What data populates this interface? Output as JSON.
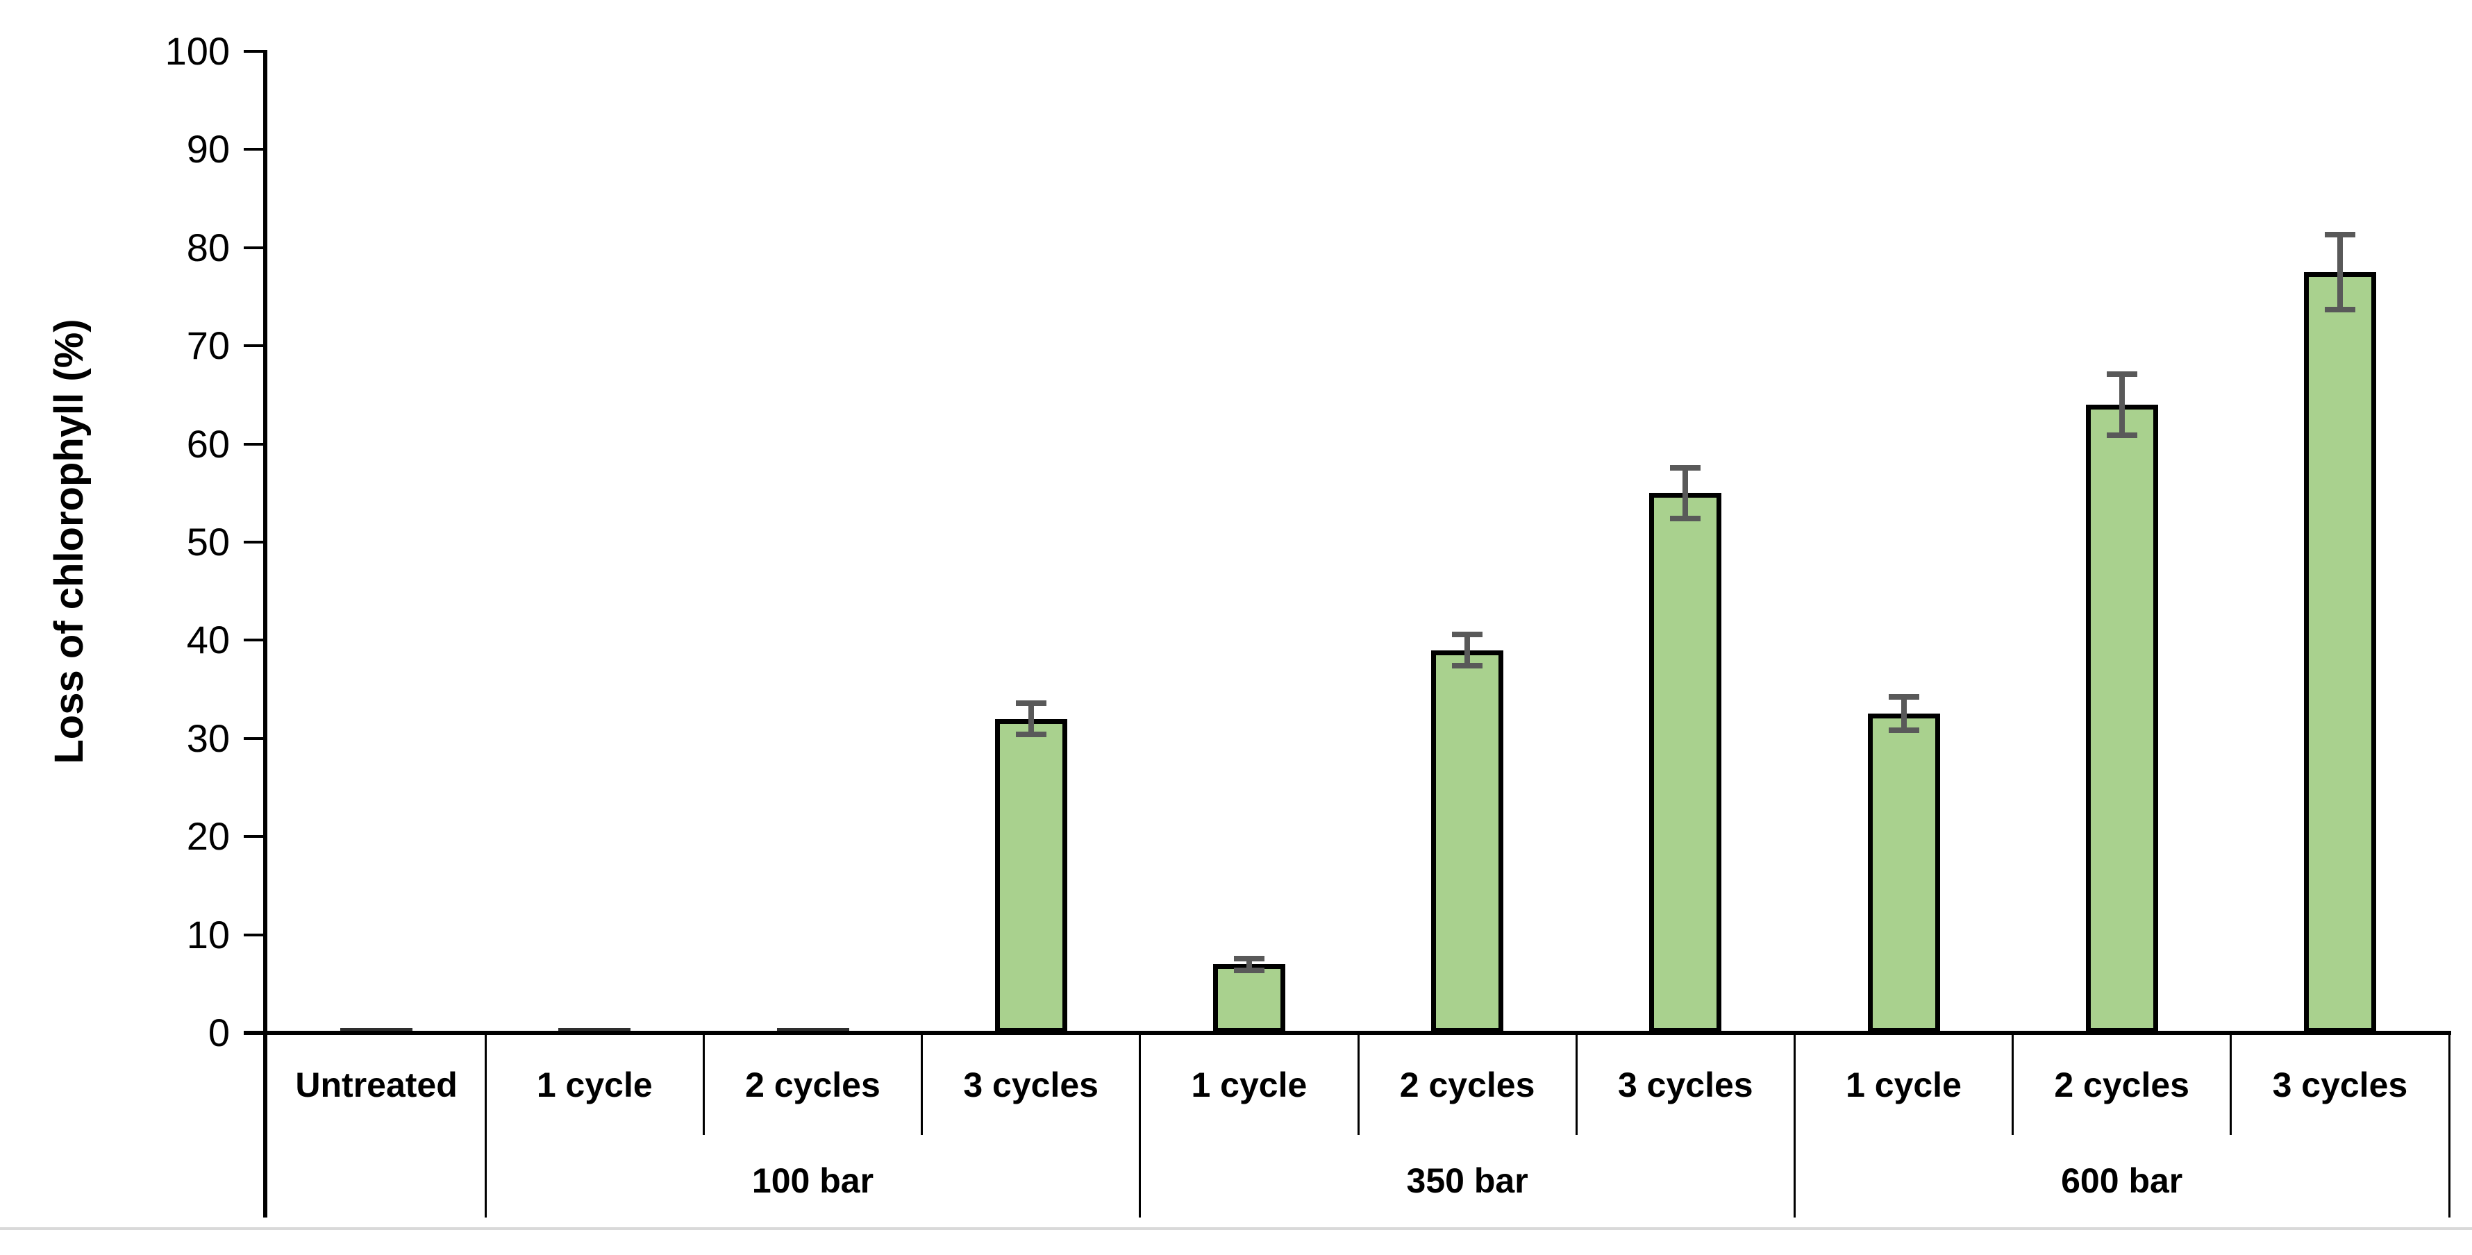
{
  "chart_data": {
    "type": "bar",
    "title": "",
    "ylabel": "Loss of chlorophyll (%)",
    "xlabel": "",
    "ylim": [
      0,
      100
    ],
    "yticks": [
      0,
      10,
      20,
      30,
      40,
      50,
      60,
      70,
      80,
      90,
      100
    ],
    "grid": false,
    "legend": null,
    "categories": [
      "Untreated",
      "1 cycle",
      "2 cycles",
      "3 cycles",
      "1 cycle",
      "2 cycles",
      "3 cycles",
      "1 cycle",
      "2 cycles",
      "3 cycles"
    ],
    "group_labels": [
      {
        "label": "",
        "span": 1
      },
      {
        "label": "100 bar",
        "span": 3
      },
      {
        "label": "350 bar",
        "span": 3
      },
      {
        "label": "600 bar",
        "span": 3
      }
    ],
    "values": [
      0,
      0,
      0,
      32,
      7,
      39,
      55,
      32.5,
      64,
      77.5
    ],
    "errors": [
      0,
      0,
      0,
      1.6,
      0.6,
      1.6,
      2.6,
      1.7,
      3.1,
      3.8
    ],
    "bar_fill_color": "#A9D18E",
    "bar_border_color": "#000000",
    "error_bar_color": "#595959",
    "axis_color": "#000000"
  }
}
